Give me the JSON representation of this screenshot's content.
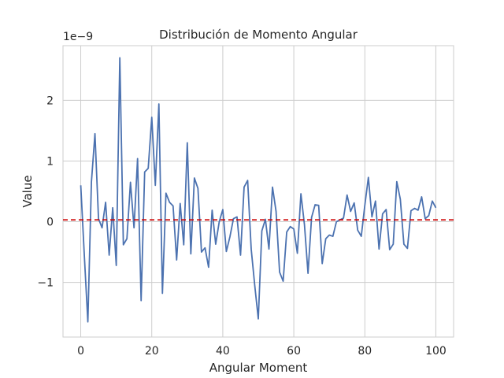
{
  "chart_data": {
    "type": "line",
    "title": "Distribución de Momento Angular",
    "xlabel": "Angular Moment",
    "ylabel": "Value",
    "y_offset_text": "1e−9",
    "xlim": [
      -5,
      105
    ],
    "ylim": [
      -1.9,
      2.9
    ],
    "x_ticks": [
      0,
      20,
      40,
      60,
      80,
      100
    ],
    "y_ticks": [
      -1,
      0,
      1,
      2
    ],
    "y_tick_labels": [
      "−1",
      "0",
      "1",
      "2"
    ],
    "grid": true,
    "series": [
      {
        "color": "#4c72b0",
        "x": [
          0,
          1,
          2,
          3,
          4,
          5,
          6,
          7,
          8,
          9,
          10,
          11,
          12,
          13,
          14,
          15,
          16,
          17,
          18,
          19,
          20,
          21,
          22,
          23,
          24,
          25,
          26,
          27,
          28,
          29,
          30,
          31,
          32,
          33,
          34,
          35,
          36,
          37,
          38,
          39,
          40,
          41,
          42,
          43,
          44,
          45,
          46,
          47,
          48,
          49,
          50,
          51,
          52,
          53,
          54,
          55,
          56,
          57,
          58,
          59,
          60,
          61,
          62,
          63,
          64,
          65,
          66,
          67,
          68,
          69,
          70,
          71,
          72,
          73,
          74,
          75,
          76,
          77,
          78,
          79,
          80,
          81,
          82,
          83,
          84,
          85,
          86,
          87,
          88,
          89,
          90,
          91,
          92,
          93,
          94,
          95,
          96,
          97,
          98,
          99,
          100
        ],
        "values": [
          0.6,
          -0.55,
          -1.65,
          0.65,
          1.45,
          0.05,
          -0.1,
          0.32,
          -0.55,
          0.23,
          -0.72,
          2.7,
          -0.38,
          -0.28,
          0.65,
          -0.1,
          1.04,
          -1.3,
          0.82,
          0.88,
          1.72,
          0.6,
          1.94,
          -1.18,
          0.47,
          0.32,
          0.26,
          -0.63,
          0.3,
          -0.38,
          1.3,
          -0.53,
          0.72,
          0.55,
          -0.5,
          -0.43,
          -0.75,
          0.19,
          -0.37,
          0.0,
          0.2,
          -0.49,
          -0.25,
          0.05,
          0.08,
          -0.55,
          0.57,
          0.68,
          -0.45,
          -1.05,
          -1.6,
          -0.15,
          0.04,
          -0.45,
          0.57,
          0.17,
          -0.83,
          -0.98,
          -0.17,
          -0.08,
          -0.12,
          -0.52,
          0.46,
          -0.05,
          -0.85,
          0.07,
          0.28,
          0.27,
          -0.69,
          -0.28,
          -0.22,
          -0.24,
          0.0,
          0.03,
          0.06,
          0.44,
          0.17,
          0.31,
          -0.14,
          -0.24,
          0.27,
          0.73,
          0.08,
          0.34,
          -0.45,
          0.13,
          0.2,
          -0.46,
          -0.37,
          0.66,
          0.37,
          -0.37,
          -0.44,
          0.18,
          0.22,
          0.19,
          0.41,
          0.05,
          0.1,
          0.34,
          0.23
        ]
      }
    ],
    "reference_line": {
      "y": 0.03,
      "color": "#cc0000",
      "style": "dashed"
    }
  }
}
